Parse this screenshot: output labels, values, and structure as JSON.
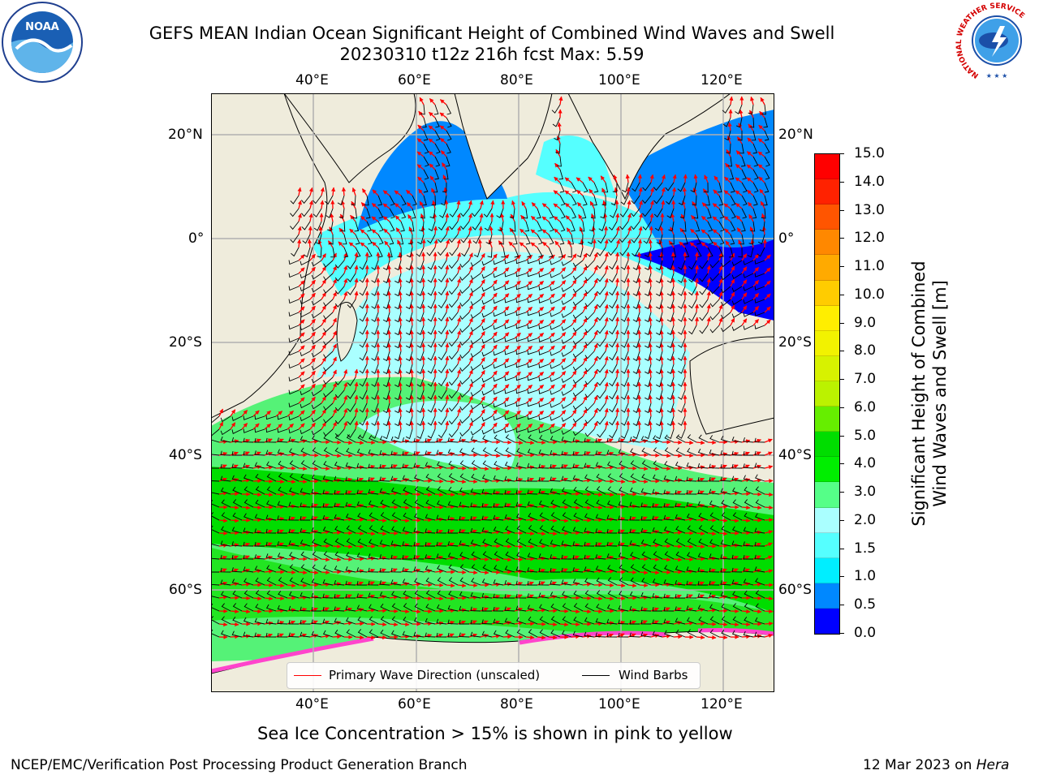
{
  "title": {
    "line1": "GEFS MEAN Indian Ocean Significant Height of Combined Wind Waves and Swell",
    "line2": "20230310 t12z 216h fcst   Max: 5.59"
  },
  "map": {
    "lon_ticks": [
      "40°E",
      "60°E",
      "80°E",
      "100°E",
      "120°E"
    ],
    "lat_ticks": [
      "20°N",
      "0°",
      "20°S",
      "40°S",
      "60°S"
    ],
    "colors": {
      "ocean_land": "#efecdc",
      "grid": "#b0b0b0",
      "wave_arrow": "#ff0000",
      "wind_barb": "#000000",
      "sea_ice": "#ff44cc"
    }
  },
  "legend": {
    "wave_label": "Primary Wave Direction (unscaled)",
    "wind_label": "Wind Barbs"
  },
  "colorbar": {
    "label_line1": "Significant Height of Combined",
    "label_line2": "Wind Waves and Swell [m]",
    "ticks": [
      "15.0",
      "14.0",
      "13.0",
      "12.0",
      "11.0",
      "10.0",
      "9.0",
      "8.0",
      "7.0",
      "6.0",
      "5.0",
      "4.0",
      "3.0",
      "2.0",
      "1.5",
      "1.0",
      "0.5",
      "0.0"
    ],
    "colors": [
      "#ff0000",
      "#ff2200",
      "#ff5500",
      "#ff8800",
      "#ffaa00",
      "#ffcc00",
      "#ffee00",
      "#f2f200",
      "#d7f200",
      "#bbf200",
      "#66ee00",
      "#00dd00",
      "#00ee00",
      "#55ff88",
      "#aaffff",
      "#55ffff",
      "#00eeff",
      "#0088ff",
      "#0000ff"
    ]
  },
  "logos": {
    "noaa_text": "NOAA",
    "nws_text": "NATIONAL WEATHER SERVICE"
  },
  "footer": {
    "ice_note": "Sea Ice Concentration > 15% is shown in pink to yellow",
    "credit_left": "NCEP/EMC/Verification Post Processing Product Generation Branch",
    "credit_date": "12 Mar 2023 on ",
    "credit_machine": "Hera"
  }
}
